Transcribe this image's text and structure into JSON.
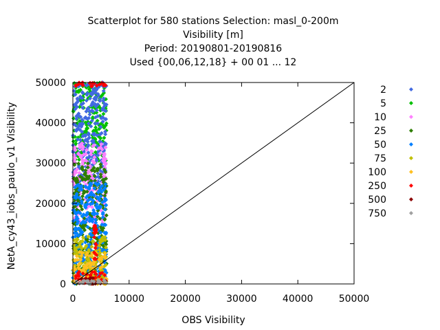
{
  "title_lines": [
    "Scatterplot for  580 stations Selection: masl_0-200m",
    "Visibility [m]",
    "Period: 20190801-20190816",
    "Used {00,06,12,18} + 00 01 ... 12"
  ],
  "chart_data": {
    "type": "scatter",
    "xlabel": "OBS Visibility",
    "ylabel": "NetA_cy43_iobs_paulo_v1 Visibility",
    "xlim": [
      0,
      50000
    ],
    "ylim": [
      0,
      50000
    ],
    "xticks": [
      "0",
      "10000",
      "20000",
      "30000",
      "40000",
      "50000"
    ],
    "yticks": [
      "0",
      "10000",
      "20000",
      "30000",
      "40000",
      "50000"
    ],
    "grid": false,
    "legend_position": "right",
    "reference_line": {
      "x": [
        0,
        50000
      ],
      "y": [
        0,
        50000
      ]
    },
    "series": [
      {
        "name": "2",
        "color": "#4169e1"
      },
      {
        "name": "5",
        "color": "#00c000"
      },
      {
        "name": "10",
        "color": "#ff80ff"
      },
      {
        "name": "25",
        "color": "#2e7d00"
      },
      {
        "name": "50",
        "color": "#0080ff"
      },
      {
        "name": "75",
        "color": "#c0c000"
      },
      {
        "name": "100",
        "color": "#ffc020"
      },
      {
        "name": "250",
        "color": "#ff0000"
      },
      {
        "name": "500",
        "color": "#8b0000"
      },
      {
        "name": "750",
        "color": "#a0a0a0"
      }
    ],
    "point_clusters": [
      {
        "series": "5",
        "x_range": [
          0,
          6000
        ],
        "y_range": [
          30000,
          50000
        ]
      },
      {
        "series": "2",
        "x_range": [
          0,
          6000
        ],
        "y_range": [
          25000,
          50000
        ]
      },
      {
        "series": "10",
        "x_range": [
          0,
          6000
        ],
        "y_range": [
          15000,
          35000
        ]
      },
      {
        "series": "25",
        "x_range": [
          0,
          6000
        ],
        "y_range": [
          0,
          30000
        ]
      },
      {
        "series": "50",
        "x_range": [
          0,
          6000
        ],
        "y_range": [
          0,
          25000
        ]
      },
      {
        "series": "75",
        "x_range": [
          0,
          6000
        ],
        "y_range": [
          0,
          12000
        ]
      },
      {
        "series": "100",
        "x_range": [
          0,
          6000
        ],
        "y_range": [
          0,
          8000
        ]
      },
      {
        "series": "250",
        "x_range": [
          0,
          6000
        ],
        "y_range": [
          0,
          3000
        ]
      },
      {
        "series": "500",
        "x_range": [
          0,
          6000
        ],
        "y_range": [
          0,
          1500
        ]
      },
      {
        "series": "750",
        "x_range": [
          0,
          6000
        ],
        "y_range": [
          0,
          1000
        ]
      },
      {
        "series": "250",
        "x_range": [
          3800,
          4200
        ],
        "y_range": [
          5000,
          15000
        ]
      },
      {
        "series": "2",
        "x_range": [
          0,
          6000
        ],
        "y_range": [
          49000,
          50000
        ]
      },
      {
        "series": "250",
        "x_range": [
          0,
          6000
        ],
        "y_range": [
          49000,
          50000
        ]
      }
    ]
  }
}
